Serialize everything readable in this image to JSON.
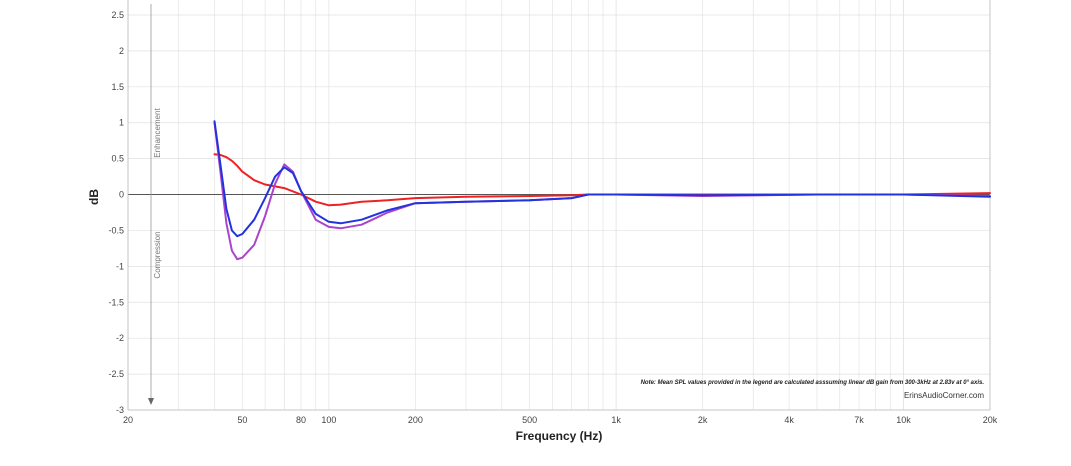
{
  "chart_data": {
    "type": "line",
    "xlabel": "Frequency (Hz)",
    "ylabel": "dB",
    "x_scale": "log",
    "xlim": [
      20,
      20000
    ],
    "ylim": [
      -3,
      2.5
    ],
    "grid": true,
    "x_ticks": [
      {
        "value": 20,
        "label": "20"
      },
      {
        "value": 50,
        "label": "50"
      },
      {
        "value": 80,
        "label": "80"
      },
      {
        "value": 100,
        "label": "100"
      },
      {
        "value": 200,
        "label": "200"
      },
      {
        "value": 500,
        "label": "500"
      },
      {
        "value": 1000,
        "label": "1k"
      },
      {
        "value": 2000,
        "label": "2k"
      },
      {
        "value": 4000,
        "label": "4k"
      },
      {
        "value": 7000,
        "label": "7k"
      },
      {
        "value": 10000,
        "label": "10k"
      },
      {
        "value": 20000,
        "label": "20k"
      }
    ],
    "y_ticks": [
      {
        "value": 2.5,
        "label": "2.5"
      },
      {
        "value": 2,
        "label": "2"
      },
      {
        "value": 1.5,
        "label": "1.5"
      },
      {
        "value": 1,
        "label": "1"
      },
      {
        "value": 0.5,
        "label": "0.5"
      },
      {
        "value": 0,
        "label": "0"
      },
      {
        "value": -0.5,
        "label": "-0.5"
      },
      {
        "value": -1,
        "label": "-1"
      },
      {
        "value": -1.5,
        "label": "-1.5"
      },
      {
        "value": -2,
        "label": "-2"
      },
      {
        "value": -2.5,
        "label": "-2.5"
      },
      {
        "value": -3,
        "label": "-3"
      }
    ],
    "region_labels": {
      "enhancement": "Enhancement",
      "compression": "Compression"
    },
    "note": "Note: Mean SPL values provided in the legend are calculated asssuming linear dB gain from 300-3kHz at 2.83v at 0° axis.",
    "credit": "ErinsAudioCorner.com",
    "series": [
      {
        "color": "#ee2222",
        "x": [
          40,
          42,
          44,
          46,
          48,
          50,
          55,
          60,
          70,
          80,
          90,
          100,
          110,
          130,
          160,
          200,
          300,
          500,
          700,
          800,
          1000,
          2000,
          5000,
          10000,
          20000
        ],
        "y": [
          0.56,
          0.55,
          0.52,
          0.47,
          0.4,
          0.32,
          0.2,
          0.14,
          0.09,
          0.0,
          -0.1,
          -0.15,
          -0.14,
          -0.1,
          -0.08,
          -0.05,
          -0.03,
          -0.02,
          -0.01,
          0.0,
          0.0,
          0.0,
          0.0,
          0.0,
          0.02
        ]
      },
      {
        "color": "#aa44cc",
        "x": [
          40,
          42,
          44,
          46,
          48,
          50,
          55,
          60,
          65,
          70,
          75,
          80,
          90,
          100,
          110,
          130,
          160,
          200,
          300,
          500,
          700,
          800,
          1000,
          2000,
          5000,
          10000,
          20000
        ],
        "y": [
          1.0,
          0.3,
          -0.4,
          -0.78,
          -0.9,
          -0.88,
          -0.7,
          -0.3,
          0.15,
          0.42,
          0.32,
          0.05,
          -0.35,
          -0.45,
          -0.47,
          -0.42,
          -0.25,
          -0.12,
          -0.1,
          -0.08,
          -0.05,
          0.0,
          0.0,
          -0.02,
          0.0,
          0.0,
          -0.02
        ]
      },
      {
        "color": "#2233dd",
        "x": [
          40,
          42,
          44,
          46,
          48,
          50,
          55,
          60,
          65,
          70,
          75,
          80,
          90,
          100,
          110,
          130,
          160,
          200,
          300,
          500,
          700,
          800,
          1000,
          2000,
          5000,
          10000,
          20000
        ],
        "y": [
          1.02,
          0.4,
          -0.2,
          -0.5,
          -0.58,
          -0.55,
          -0.35,
          -0.05,
          0.25,
          0.38,
          0.3,
          0.05,
          -0.27,
          -0.38,
          -0.4,
          -0.35,
          -0.22,
          -0.12,
          -0.1,
          -0.08,
          -0.05,
          0.0,
          0.0,
          -0.01,
          0.0,
          0.0,
          -0.03
        ]
      }
    ]
  }
}
